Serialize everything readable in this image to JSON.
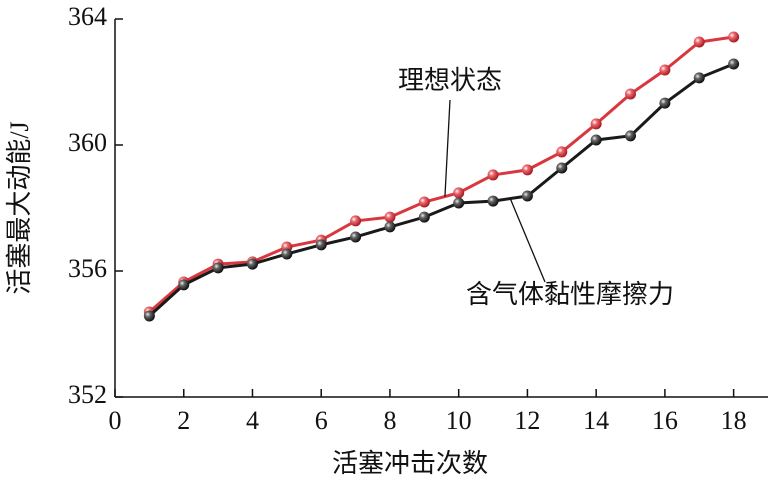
{
  "chart_data": {
    "type": "line",
    "x_label": "活塞冲击次数",
    "y_label": "活塞最大动能/J",
    "x": [
      1,
      2,
      3,
      4,
      5,
      6,
      7,
      8,
      9,
      10,
      11,
      12,
      13,
      14,
      15,
      16,
      17,
      18
    ],
    "series": [
      {
        "name": "理想状态",
        "color": "#d9363e",
        "values": [
          354.7,
          355.65,
          356.22,
          356.29,
          356.76,
          356.98,
          357.59,
          357.71,
          358.19,
          358.48,
          359.05,
          359.21,
          359.78,
          360.67,
          361.62,
          362.38,
          363.27,
          363.43
        ]
      },
      {
        "name": "含气体黏性摩擦力",
        "color": "#1a1a1a",
        "values": [
          354.57,
          355.56,
          356.1,
          356.22,
          356.54,
          356.83,
          357.08,
          357.4,
          357.71,
          358.16,
          358.22,
          358.38,
          359.27,
          360.16,
          360.29,
          361.33,
          362.13,
          362.57
        ]
      }
    ],
    "xlim": [
      0,
      19
    ],
    "xticks": [
      0,
      2,
      4,
      6,
      8,
      10,
      12,
      14,
      16,
      18
    ],
    "ylim": [
      352,
      364
    ],
    "yticks": [
      352,
      356,
      360,
      364
    ]
  }
}
